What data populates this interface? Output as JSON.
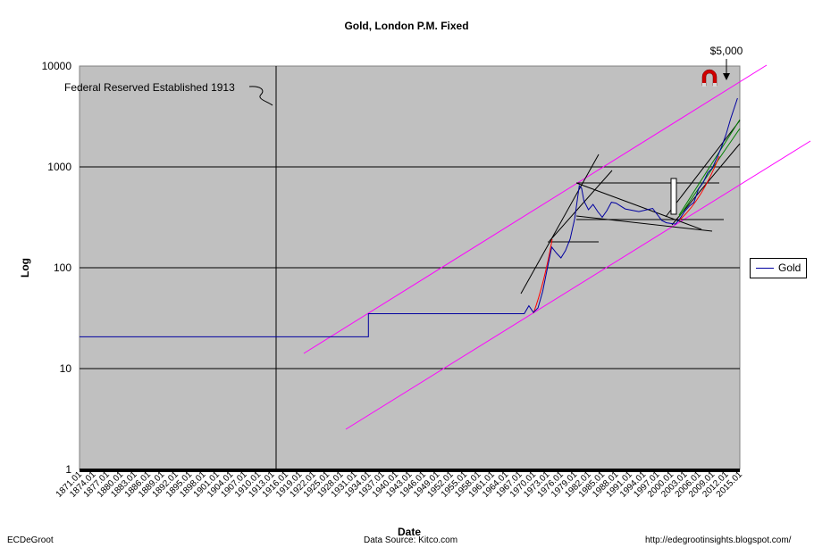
{
  "chart_data": {
    "type": "line",
    "title": "Gold, London P.M. Fixed",
    "xlabel": "Date",
    "ylabel": "Log",
    "yscale": "log",
    "ylim": [
      1,
      10000
    ],
    "xlim": [
      1871.01,
      2015.01
    ],
    "yticks": [
      "1",
      "10",
      "100",
      "1000",
      "10000"
    ],
    "xticks": [
      "1871.01",
      "1874.01",
      "1877.01",
      "1880.01",
      "1883.01",
      "1886.01",
      "1889.01",
      "1892.01",
      "1895.01",
      "1898.01",
      "1901.01",
      "1904.01",
      "1907.01",
      "1910.01",
      "1913.01",
      "1916.01",
      "1919.01",
      "1922.01",
      "1925.01",
      "1928.01",
      "1931.01",
      "1934.01",
      "1937.01",
      "1940.01",
      "1943.01",
      "1946.01",
      "1949.01",
      "1952.01",
      "1955.01",
      "1958.01",
      "1961.01",
      "1964.01",
      "1967.01",
      "1970.01",
      "1973.01",
      "1976.01",
      "1979.01",
      "1982.01",
      "1985.01",
      "1988.01",
      "1991.01",
      "1994.01",
      "1997.01",
      "2000.01",
      "2003.01",
      "2006.01",
      "2009.01",
      "2012.01",
      "2015.01"
    ],
    "grid": "horizontal",
    "legend_position": "right",
    "plot_background": "#c0c0c0",
    "series": [
      {
        "name": "Gold",
        "color": "#0000a0",
        "x": [
          1871,
          1934,
          1934,
          1968,
          1969,
          1970,
          1971,
          1972,
          1973,
          1974,
          1975,
          1976,
          1977,
          1978,
          1979,
          1980,
          1980.5,
          1981,
          1982,
          1983,
          1984,
          1985,
          1986,
          1987,
          1988,
          1990,
          1993,
          1996,
          1998,
          1999,
          2001,
          2002,
          2003,
          2004,
          2005,
          2006,
          2007,
          2008,
          2009,
          2010,
          2011,
          2012,
          2013,
          2014.5
        ],
        "y": [
          20.67,
          20.67,
          35,
          35,
          42,
          36,
          40,
          58,
          97,
          160,
          140,
          125,
          148,
          193,
          307,
          650,
          615,
          460,
          376,
          424,
          361,
          317,
          368,
          446,
          437,
          383,
          360,
          388,
          294,
          279,
          271,
          310,
          364,
          409,
          445,
          604,
          697,
          872,
          972,
          1225,
          1570,
          2100,
          3000,
          4800
        ]
      }
    ],
    "annotations": [
      {
        "text": "Federal Reserved Established 1913",
        "x": 1913
      },
      {
        "text": "$5,000",
        "y": 5000
      }
    ]
  },
  "footer": {
    "left": "ECDeGroot",
    "center": "Data Source:  Kitco.com",
    "right": "http://edegrootinsights.blogspot.com/"
  }
}
